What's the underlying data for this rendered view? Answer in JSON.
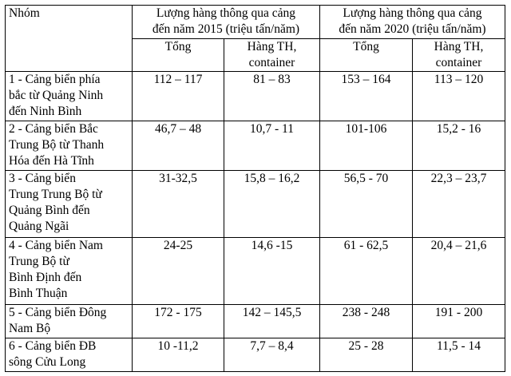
{
  "table": {
    "header": {
      "group": "Nhóm",
      "period_2015": "Lượng hàng thông qua cảng\nđến năm 2015 (triệu tấn/năm)",
      "period_2020": "Lượng hàng thông qua cảng\nđến năm 2020 (triệu tấn/năm)",
      "total_2015": "Tổng",
      "container_2015": "Hàng TH,\ncontainer",
      "total_2020": "Tổng",
      "container_2020": "Hàng TH,\ncontainer"
    },
    "rows": [
      {
        "group": "1 - Cảng biển phía\nbắc từ Quảng Ninh\nđến Ninh Bình",
        "total_2015": "112 – 117",
        "container_2015": "81 – 83",
        "total_2020": "153 – 164",
        "container_2020": "113 – 120"
      },
      {
        "group": "2 - Cảng biển Bắc\nTrung Bộ từ Thanh\nHóa đến Hà Tĩnh",
        "total_2015": "46,7 – 48",
        "container_2015": "10,7 - 11",
        "total_2020": "101-106",
        "container_2020": "15,2 - 16"
      },
      {
        "group": "3 - Cảng biển\nTrung Trung Bộ từ\nQuảng Bình đến\nQuảng Ngãi",
        "total_2015": "31-32,5",
        "container_2015": "15,8 – 16,2",
        "total_2020": "56,5 - 70",
        "container_2020": "22,3 – 23,7"
      },
      {
        "group": "4 - Cảng biển Nam\nTrung Bộ từ\nBình Định đến\nBình Thuận",
        "total_2015": "24-25",
        "container_2015": "14,6 -15",
        "total_2020": "61 - 62,5",
        "container_2020": "20,4 – 21,6"
      },
      {
        "group": "5 - Cảng biển Đông\nNam Bộ",
        "total_2015": "172 - 175",
        "container_2015": "142 – 145,5",
        "total_2020": "238 - 248",
        "container_2020": "191 - 200"
      },
      {
        "group": "6 - Cảng biển ĐB\nsông Cửu Long",
        "total_2015": "10 -11,2",
        "container_2015": "7,7 – 8,4",
        "total_2020": "25 - 28",
        "container_2020": "11,5 - 14"
      }
    ]
  }
}
